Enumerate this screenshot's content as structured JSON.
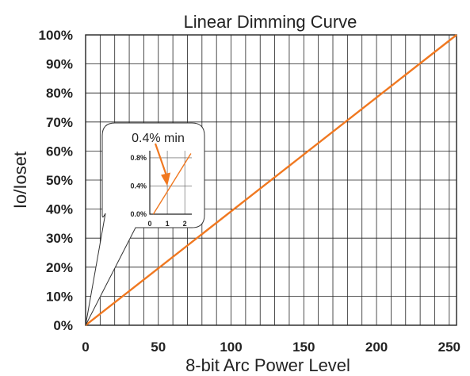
{
  "chart_data": {
    "type": "line",
    "title": "Linear Dimming Curve",
    "xlabel": "8-bit Arc Power Level",
    "ylabel": "Io/Ioset",
    "xlim": [
      0,
      255
    ],
    "ylim": [
      0,
      100
    ],
    "x_ticks": [
      0,
      50,
      100,
      150,
      200,
      250
    ],
    "x_tick_labels": [
      "0",
      "50",
      "100",
      "150",
      "200",
      "250"
    ],
    "y_ticks": [
      0,
      10,
      20,
      30,
      40,
      50,
      60,
      70,
      80,
      90,
      100
    ],
    "y_tick_labels": [
      "0%",
      "10%",
      "20%",
      "30%",
      "40%",
      "50%",
      "60%",
      "70%",
      "80%",
      "90%",
      "100%"
    ],
    "grid": true,
    "x_grid_step": 10,
    "line_color": "#f07820",
    "series": [
      {
        "x": [
          0,
          255
        ],
        "y": [
          0,
          100
        ]
      }
    ],
    "inset": {
      "annotation": "0.4% min",
      "xlim": [
        0,
        2.4
      ],
      "ylim": [
        0,
        0.9
      ],
      "x_ticks": [
        0,
        1,
        2
      ],
      "x_tick_labels": [
        "0",
        "1",
        "2"
      ],
      "y_ticks": [
        0,
        0.4,
        0.8
      ],
      "y_tick_labels": [
        "0.0%",
        "0.4%",
        "0.8%"
      ],
      "series": [
        {
          "x": [
            0.2,
            2.35
          ],
          "y": [
            0,
            0.86
          ]
        }
      ],
      "arrow_target": {
        "x": 1.0,
        "y": 0.4
      }
    }
  }
}
